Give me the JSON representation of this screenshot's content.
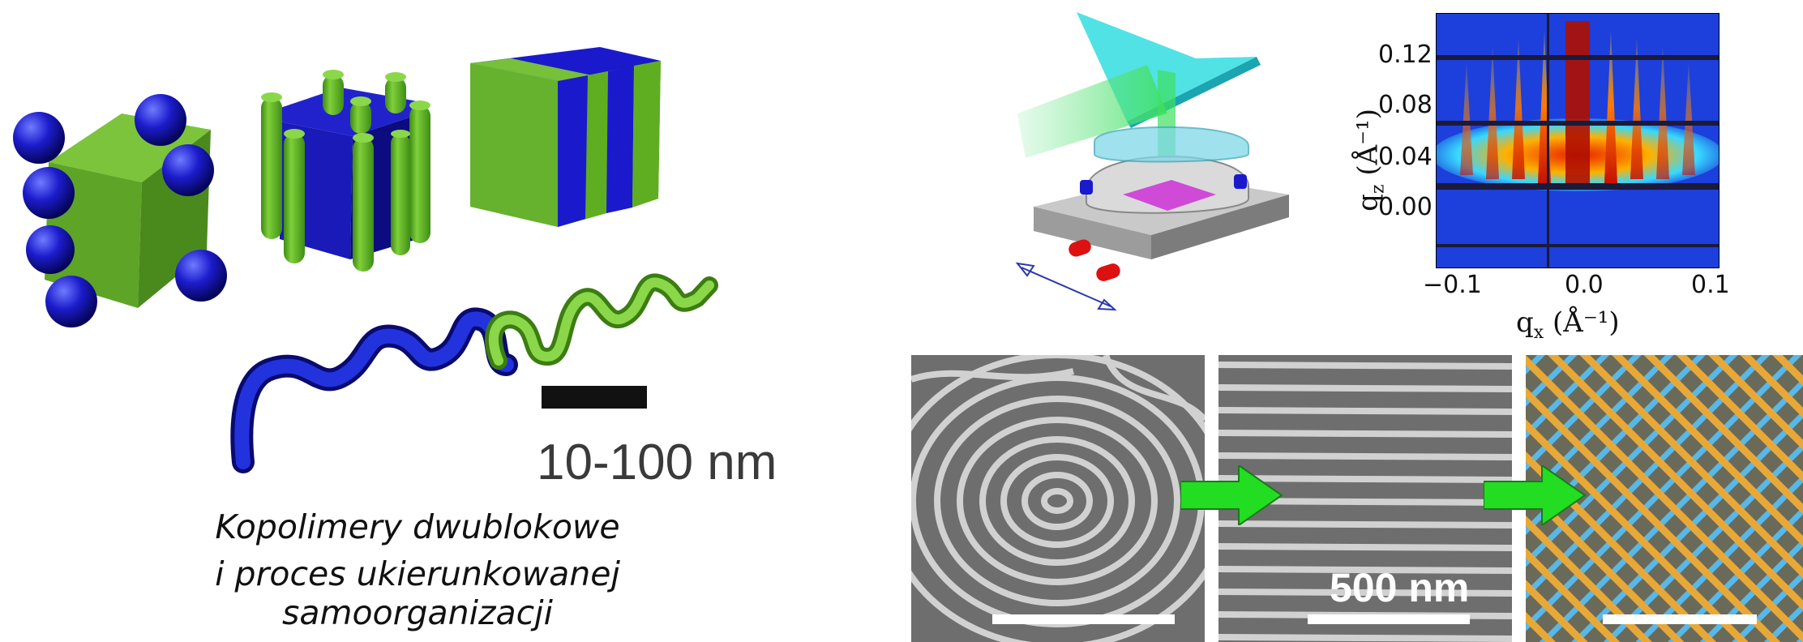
{
  "scale_bar": {
    "label": "10-100 nm"
  },
  "caption": {
    "line1": "Kopolimery dwublokowe",
    "line2": "i proces ukierunkowanej samoorganizacji"
  },
  "scattering_plot": {
    "y_ticks": [
      "0.12",
      "0.08",
      "0.04",
      "0.00"
    ],
    "x_ticks": [
      "−0.1",
      "0.0",
      "0.1"
    ],
    "y_label": "q",
    "y_label_sub": "z",
    "x_label": "q",
    "x_label_sub": "x",
    "unit": "(Å⁻¹)"
  },
  "sem": {
    "scale_label": "500 nm"
  },
  "colors": {
    "block_a": "#1a1acc",
    "block_b": "#5fae22",
    "arrow": "#22dd22",
    "sem_bg": "#6e6e6e"
  }
}
